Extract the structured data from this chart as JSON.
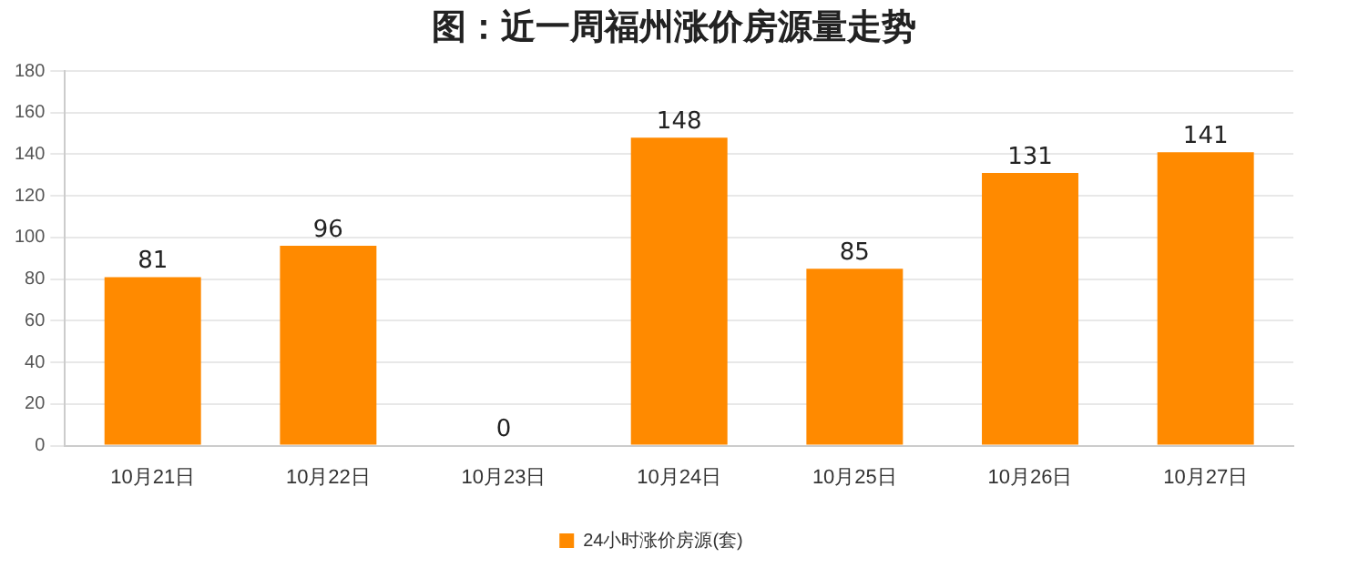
{
  "chart_data": {
    "type": "bar",
    "title": "图：近一周福州涨价房源量走势",
    "categories": [
      "10月21日",
      "10月22日",
      "10月23日",
      "10月24日",
      "10月25日",
      "10月26日",
      "10月27日"
    ],
    "series": [
      {
        "name": "24小时涨价房源(套)",
        "color": "#ff8a00",
        "values": [
          81,
          96,
          0,
          148,
          85,
          131,
          141
        ]
      }
    ],
    "ylim": [
      0,
      180
    ],
    "yticks": [
      0,
      20,
      40,
      60,
      80,
      100,
      120,
      140,
      160,
      180
    ],
    "grid": "y",
    "legend": "bottom",
    "data_labels": true
  }
}
